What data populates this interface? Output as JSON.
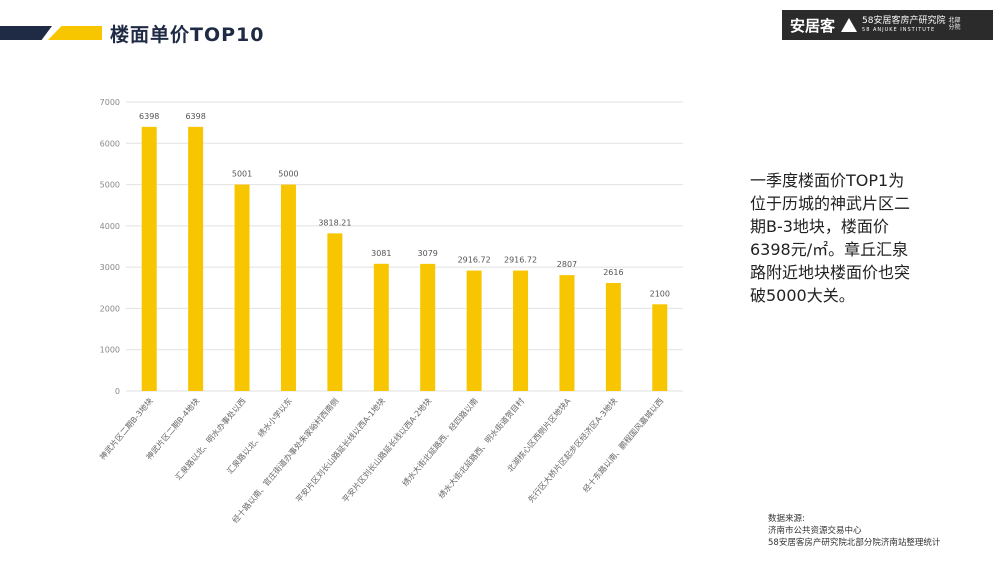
{
  "header": {
    "title": "楼面单价TOP10",
    "colors": {
      "navy": "#1f2a44",
      "yellow": "#f7c600"
    }
  },
  "logo": {
    "brand": "安居客",
    "institute": "58安居客房产研究院",
    "institute_en": "58 ANJUKE INSTITUTE",
    "branch": "北部分院",
    "icon": "anjuke-triangle-icon"
  },
  "chart_data": {
    "type": "bar",
    "categories": [
      "神武片区二期B-3地块",
      "神武片区二期B-4地块",
      "汇泉路以北、明水办事处以西",
      "汇泉路以北、绣水小学以东",
      "经十路以南、官庄街道办事处朱家峪村西南侧",
      "平安片区刘长山路延长线以西A-1地块",
      "平安片区刘长山路延长线以西A-2地块",
      "绣水大街北延路西、经四路以南",
      "绣水大街北延路西、明水街道贺目村",
      "北湖核心区西侧片区地块A",
      "先行区大桥片区起步区经济区A-3地块",
      "经十东路以南、鹏程国风嘉城以西"
    ],
    "values": [
      6398,
      6398,
      5001,
      5000,
      3818.21,
      3081,
      3079,
      2916.72,
      2916.72,
      2807,
      2616,
      2100
    ],
    "data_labels": [
      "6398",
      "6398",
      "5001",
      "5000",
      "3818.21",
      "3081",
      "3079",
      "2916.72",
      "2916.72",
      "2807",
      "2616",
      "2100"
    ],
    "yticks": [
      0,
      1000,
      2000,
      3000,
      4000,
      5000,
      6000,
      7000
    ],
    "ylim": [
      0,
      7000
    ],
    "grid": true,
    "bar_color": "#f7c600",
    "title": "",
    "xlabel": "",
    "ylabel": ""
  },
  "summary": "一季度楼面价TOP1为位于历城的神武片区二期B-3地块，楼面价6398元/㎡。章丘汇泉路附近地块楼面价也突破5000大关。",
  "source": {
    "label": "数据来源:",
    "line1": "济南市公共资源交易中心",
    "line2": "58安居客房产研究院北部分院济南站整理统计"
  }
}
